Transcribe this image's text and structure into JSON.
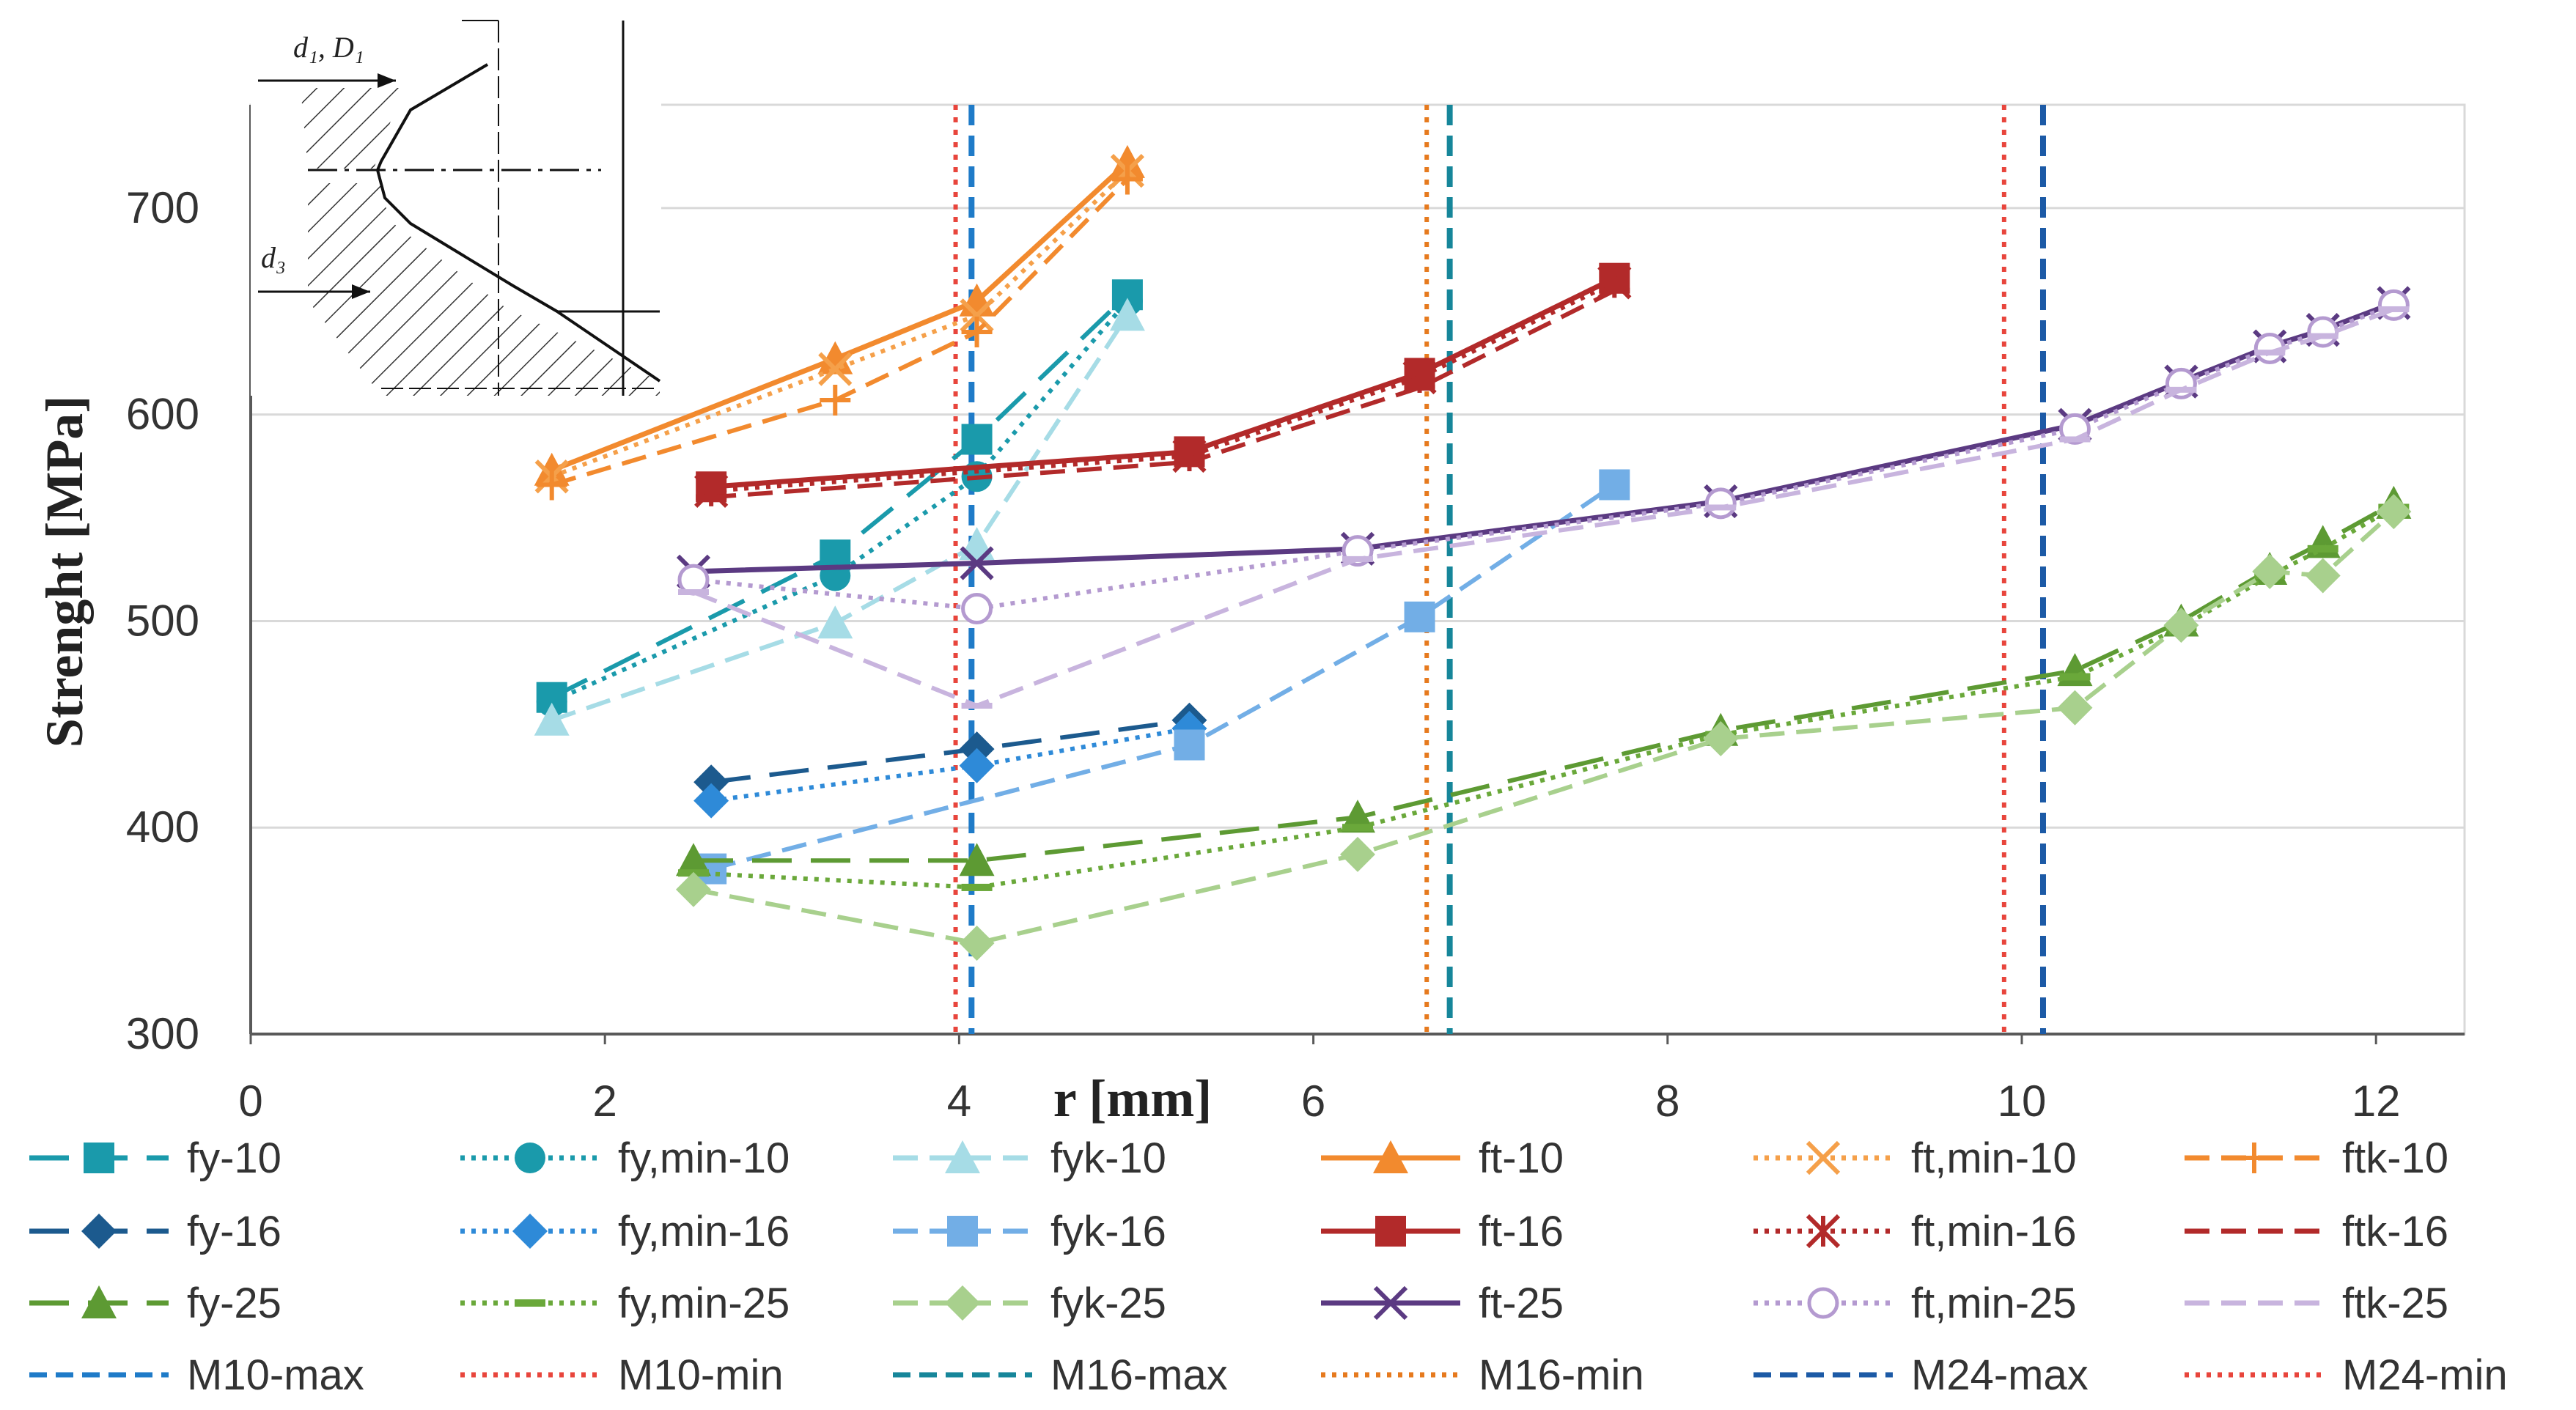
{
  "chart_data": {
    "type": "line",
    "title": "",
    "xlabel": "r [mm]",
    "ylabel": "Strenght [MPa]",
    "xlim": [
      0,
      12.5
    ],
    "ylim": [
      300,
      750
    ],
    "x_ticks": [
      "0",
      "2",
      "4",
      "6",
      "8",
      "10",
      "12"
    ],
    "y_ticks": [
      "300",
      "400",
      "500",
      "600",
      "700"
    ],
    "grid": "horizontal",
    "legend_position": "bottom",
    "inset_labels": [
      "d₁, D₁",
      "d₃"
    ],
    "series": [
      {
        "name": "fy-10",
        "color": "#1a9aab",
        "dash": "long-dash",
        "marker": "square",
        "x": [
          1.7,
          3.3,
          4.1,
          4.95
        ],
        "y": [
          463,
          532,
          588,
          658
        ]
      },
      {
        "name": "fy,min-10",
        "color": "#1a9aab",
        "dash": "dot",
        "marker": "circle",
        "x": [
          1.7,
          3.3,
          4.1,
          4.95
        ],
        "y": [
          461,
          522,
          570,
          655
        ]
      },
      {
        "name": "fyk-10",
        "color": "#a6dce6",
        "dash": "dash",
        "marker": "triangle",
        "x": [
          1.7,
          3.3,
          4.1,
          4.95
        ],
        "y": [
          452,
          499,
          537,
          648
        ]
      },
      {
        "name": "ft-10",
        "color": "#f28a2e",
        "dash": "solid",
        "marker": "triangle",
        "x": [
          1.7,
          3.3,
          4.1,
          4.95
        ],
        "y": [
          573,
          627,
          655,
          722
        ]
      },
      {
        "name": "ft,min-10",
        "color": "#f5a04a",
        "dash": "dot",
        "marker": "x",
        "x": [
          1.7,
          3.3,
          4.1,
          4.95
        ],
        "y": [
          570,
          622,
          648,
          718
        ]
      },
      {
        "name": "ftk-10",
        "color": "#f28a2e",
        "dash": "dash",
        "marker": "plus",
        "x": [
          1.7,
          3.3,
          4.1,
          4.95
        ],
        "y": [
          566,
          607,
          640,
          714
        ]
      },
      {
        "name": "fy-16",
        "color": "#1c5a8e",
        "dash": "long-dash",
        "marker": "diamond",
        "x": [
          2.6,
          4.1,
          5.3
        ],
        "y": [
          422,
          438,
          452
        ]
      },
      {
        "name": "fy,min-16",
        "color": "#2e8ad8",
        "dash": "dot",
        "marker": "diamond",
        "x": [
          2.6,
          4.1,
          5.3
        ],
        "y": [
          413,
          430,
          448
        ]
      },
      {
        "name": "fyk-16",
        "color": "#72aee6",
        "dash": "dash",
        "marker": "square",
        "x": [
          2.6,
          5.3,
          6.6,
          7.7
        ],
        "y": [
          380,
          440,
          502,
          566
        ]
      },
      {
        "name": "ft-16",
        "color": "#b22a2a",
        "dash": "solid",
        "marker": "square",
        "x": [
          2.6,
          5.3,
          6.6,
          7.7
        ],
        "y": [
          565,
          582,
          620,
          666
        ]
      },
      {
        "name": "ft,min-16",
        "color": "#b22a2a",
        "dash": "dot",
        "marker": "asterisk",
        "x": [
          2.6,
          5.3,
          6.6,
          7.7
        ],
        "y": [
          563,
          580,
          618,
          664
        ]
      },
      {
        "name": "ftk-16",
        "color": "#b22a2a",
        "dash": "dash",
        "marker": "none",
        "x": [
          2.6,
          5.3,
          6.6,
          7.7
        ],
        "y": [
          560,
          577,
          613,
          660
        ]
      },
      {
        "name": "fy-25",
        "color": "#5d9a33",
        "dash": "long-dash",
        "marker": "triangle",
        "x": [
          2.5,
          4.1,
          6.25,
          8.3,
          10.3,
          10.9,
          11.4,
          11.7,
          12.1
        ],
        "y": [
          384,
          384,
          405,
          447,
          476,
          500,
          525,
          538,
          557
        ]
      },
      {
        "name": "fy,min-25",
        "color": "#6aa83a",
        "dash": "dot",
        "marker": "dash",
        "x": [
          2.5,
          4.1,
          6.25,
          8.3,
          10.3,
          10.9,
          11.4,
          11.7,
          12.1
        ],
        "y": [
          378,
          371,
          400,
          445,
          473,
          497,
          522,
          535,
          555
        ]
      },
      {
        "name": "fyk-25",
        "color": "#a8d08d",
        "dash": "dash",
        "marker": "diamond",
        "x": [
          2.5,
          4.1,
          6.25,
          8.3,
          10.3,
          10.9,
          11.4,
          11.7,
          12.1
        ],
        "y": [
          370,
          344,
          387,
          443,
          458,
          498,
          524,
          522,
          553
        ]
      },
      {
        "name": "ft-25",
        "color": "#5b3a82",
        "dash": "solid",
        "marker": "x",
        "x": [
          2.5,
          4.1,
          6.25,
          8.3,
          10.3,
          10.9,
          11.4,
          11.7,
          12.1
        ],
        "y": [
          524,
          528,
          535,
          558,
          595,
          616,
          633,
          641,
          654
        ]
      },
      {
        "name": "ft,min-25",
        "color": "#b49ad0",
        "dash": "dot",
        "marker": "circle-open",
        "x": [
          2.5,
          4.1,
          6.25,
          8.3,
          10.3,
          10.9,
          11.4,
          11.7,
          12.1
        ],
        "y": [
          520,
          506,
          534,
          557,
          593,
          615,
          632,
          640,
          653
        ]
      },
      {
        "name": "ftk-25",
        "color": "#c8b4de",
        "dash": "dash",
        "marker": "none",
        "x": [
          2.5,
          4.1,
          6.25,
          8.3,
          10.3,
          10.9,
          11.4,
          11.7,
          12.1
        ],
        "y": [
          514,
          459,
          530,
          555,
          588,
          612,
          630,
          638,
          651
        ]
      }
    ],
    "reference_lines": [
      {
        "name": "M10-max",
        "x": 4.07,
        "color": "#1f7bc8",
        "dash": "dash"
      },
      {
        "name": "M10-min",
        "x": 3.98,
        "color": "#e8453c",
        "dash": "dot"
      },
      {
        "name": "M16-max",
        "x": 6.77,
        "color": "#16869a",
        "dash": "dash"
      },
      {
        "name": "M16-min",
        "x": 6.64,
        "color": "#e67a1e",
        "dash": "dot"
      },
      {
        "name": "M24-max",
        "x": 10.12,
        "color": "#1c5aa6",
        "dash": "dash"
      },
      {
        "name": "M24-min",
        "x": 9.9,
        "color": "#e8453c",
        "dash": "dot"
      }
    ]
  }
}
